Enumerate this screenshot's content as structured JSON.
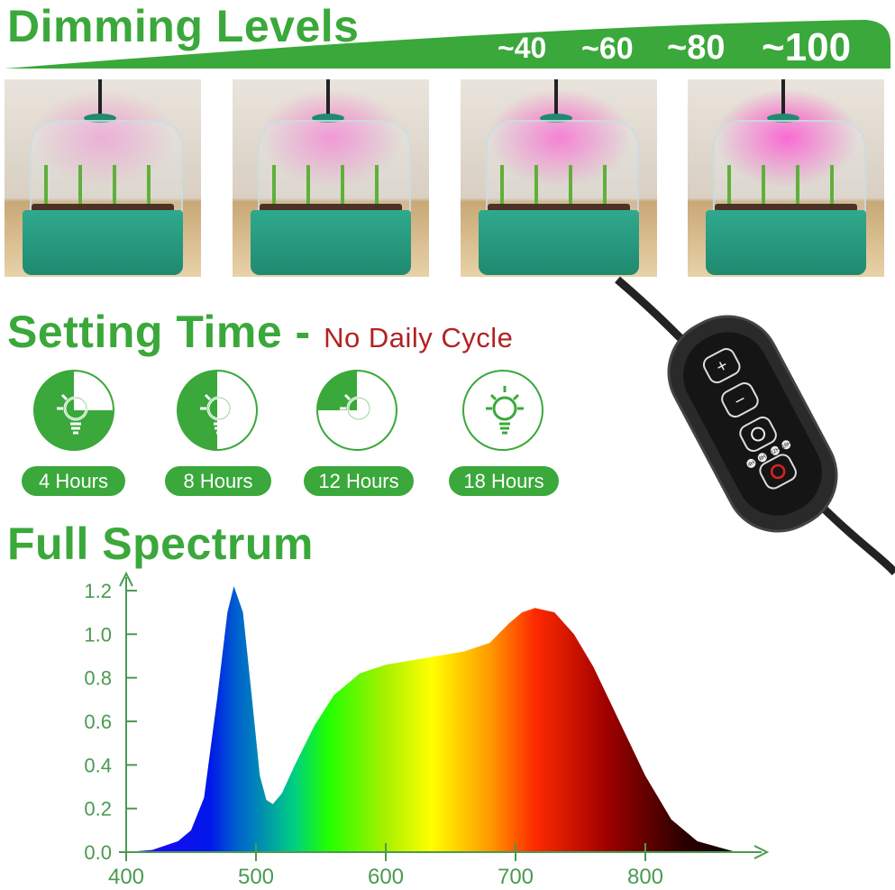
{
  "dimming": {
    "title": "Dimming Levels",
    "levels": [
      "~40",
      "~60",
      "~80",
      "~100"
    ],
    "glow": [
      0.4,
      0.6,
      0.8,
      1.0
    ]
  },
  "setting": {
    "title": "Setting Time -",
    "subtitle": "No Daily Cycle",
    "timers": [
      {
        "label": "4 Hours",
        "green_fraction": 0.75
      },
      {
        "label": "8 Hours",
        "green_fraction": 0.5
      },
      {
        "label": "12 Hours",
        "green_fraction": 0.25
      },
      {
        "label": "18 Hours",
        "green_fraction": 0
      }
    ]
  },
  "controller": {
    "buttons": [
      "+",
      "−",
      "timer",
      "power"
    ],
    "indicators": [
      "4H",
      "8H",
      "12H",
      "18H"
    ]
  },
  "spectrum": {
    "title": "Full Spectrum"
  },
  "colors": {
    "brand_green": "#3aa83a",
    "subtitle_red": "#b22222"
  },
  "chart_data": {
    "type": "area",
    "x": [
      400,
      420,
      440,
      450,
      460,
      470,
      478,
      483,
      490,
      497,
      503,
      508,
      513,
      520,
      530,
      545,
      560,
      580,
      600,
      630,
      660,
      680,
      695,
      705,
      715,
      730,
      745,
      760,
      780,
      800,
      820,
      840,
      870
    ],
    "y": [
      0,
      0.01,
      0.05,
      0.1,
      0.25,
      0.7,
      1.1,
      1.22,
      1.1,
      0.7,
      0.35,
      0.24,
      0.22,
      0.27,
      0.4,
      0.58,
      0.72,
      0.82,
      0.86,
      0.89,
      0.92,
      0.96,
      1.05,
      1.1,
      1.12,
      1.1,
      1.0,
      0.85,
      0.6,
      0.35,
      0.15,
      0.05,
      0
    ],
    "xticks": [
      "400",
      "500",
      "600",
      "700",
      "800"
    ],
    "yticks": [
      "0.0",
      "0.2",
      "0.4",
      "0.6",
      "0.8",
      "1.0",
      "1.2"
    ],
    "xlim": [
      400,
      870
    ],
    "ylim": [
      0,
      1.2
    ],
    "grid": false
  }
}
